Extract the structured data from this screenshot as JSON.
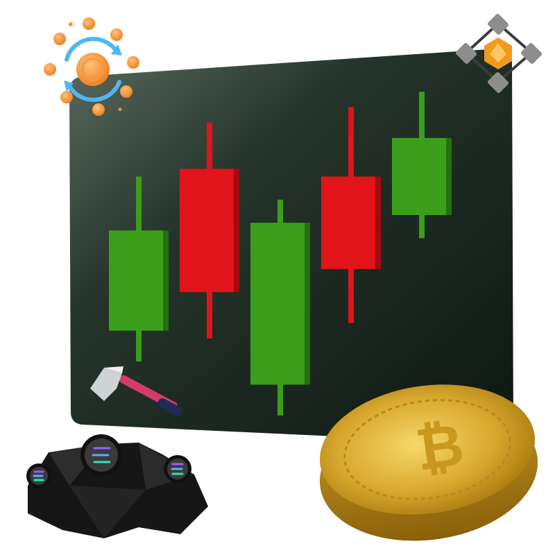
{
  "scene": {
    "board_color": "#1c2a22",
    "bull_color": "#3a9e1a",
    "bear_color": "#e0141a"
  },
  "chart_data": {
    "type": "candlestick",
    "title": "",
    "xlabel": "",
    "ylabel": "",
    "candles": [
      {
        "direction": "up",
        "open": 48,
        "close": 100,
        "low": 32,
        "high": 128
      },
      {
        "direction": "down",
        "open": 132,
        "close": 68,
        "low": 44,
        "high": 156
      },
      {
        "direction": "up",
        "open": 20,
        "close": 104,
        "low": 4,
        "high": 116
      },
      {
        "direction": "down",
        "open": 128,
        "close": 80,
        "low": 52,
        "high": 164
      },
      {
        "direction": "up",
        "open": 108,
        "close": 148,
        "low": 96,
        "high": 172
      }
    ],
    "ylim": [
      0,
      180
    ],
    "grid": false,
    "legend": "none"
  },
  "icons": {
    "exchange": "orange-coin-exchange-icon",
    "blockchain": "blockchain-node-icon",
    "hammer": "hammer-icon",
    "coin": "bitcoin-coin-icon",
    "rocks": "solana-ore-rocks-icon"
  }
}
